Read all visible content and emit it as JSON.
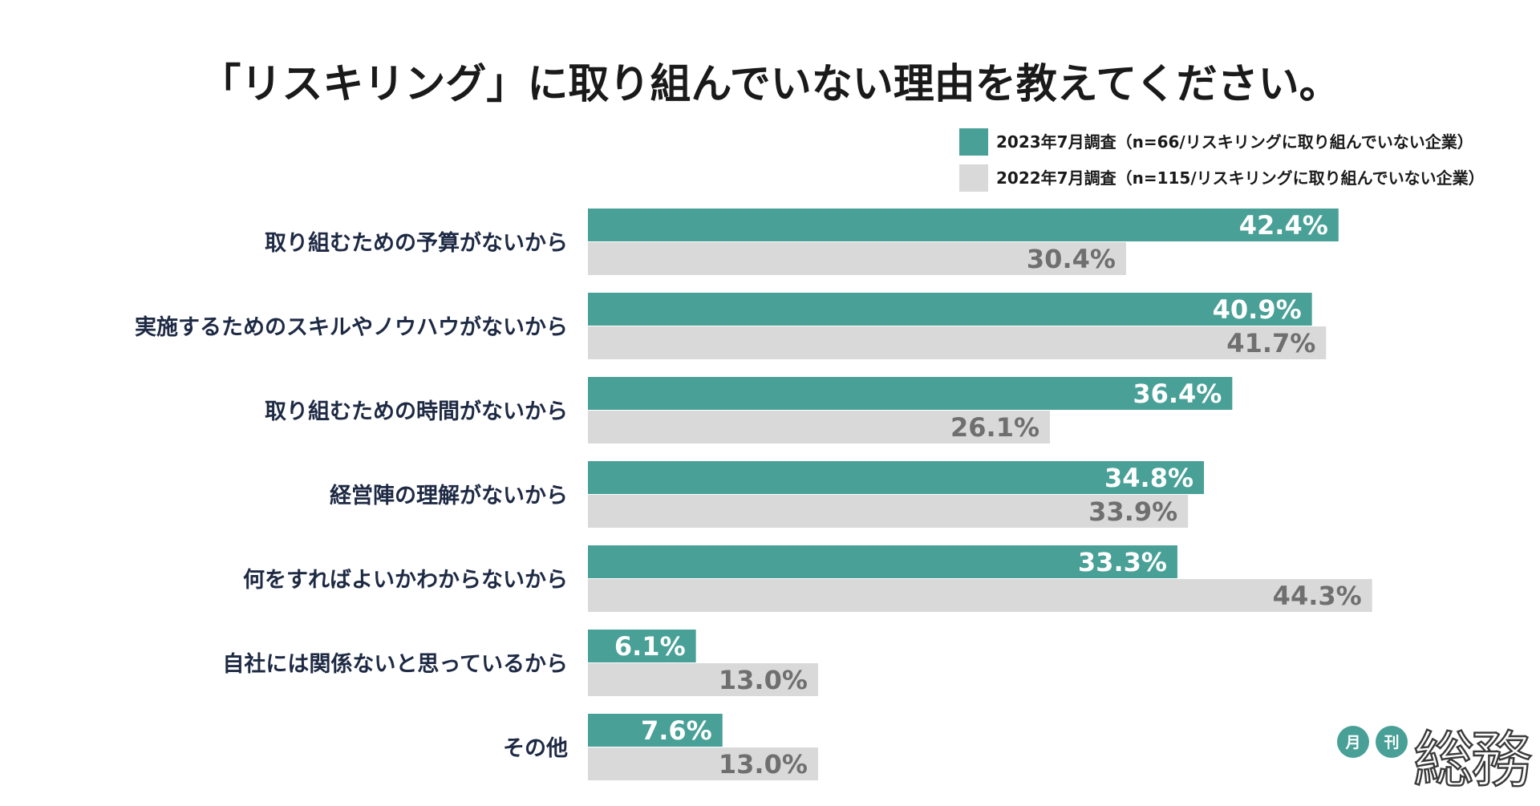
{
  "chart_data": {
    "type": "bar",
    "orientation": "horizontal",
    "title": "「リスキリング」に取り組んでいない理由を教えてください。",
    "categories": [
      "取り組むための予算がないから",
      "実施するためのスキルやノウハウがないから",
      "取り組むための時間がないから",
      "経営陣の理解がないから",
      "何をすればよいかわからないから",
      "自社には関係ないと思っているから",
      "その他"
    ],
    "series": [
      {
        "name": "2023年7月調査（n=66/リスキリングに取り組んでいない企業）",
        "color": "#48a097",
        "values": [
          42.4,
          40.9,
          36.4,
          34.8,
          33.3,
          6.1,
          7.6
        ],
        "labels": [
          "42.4%",
          "40.9%",
          "36.4%",
          "34.8%",
          "33.3%",
          "6.1%",
          "7.6%"
        ]
      },
      {
        "name": "2022年7月調査（n=115/リスキリングに取り組んでいない企業）",
        "color": "#d9d9d9",
        "values": [
          30.4,
          41.7,
          26.1,
          33.9,
          44.3,
          13.0,
          13.0
        ],
        "labels": [
          "30.4%",
          "41.7%",
          "26.1%",
          "33.9%",
          "44.3%",
          "13.0%",
          "13.0%"
        ]
      }
    ],
    "xlim": [
      0,
      50
    ],
    "grid": false,
    "legend": "top-right"
  },
  "logo": {
    "small_1": "月",
    "small_2": "刊",
    "main": "総務",
    "color": "#48a097"
  }
}
